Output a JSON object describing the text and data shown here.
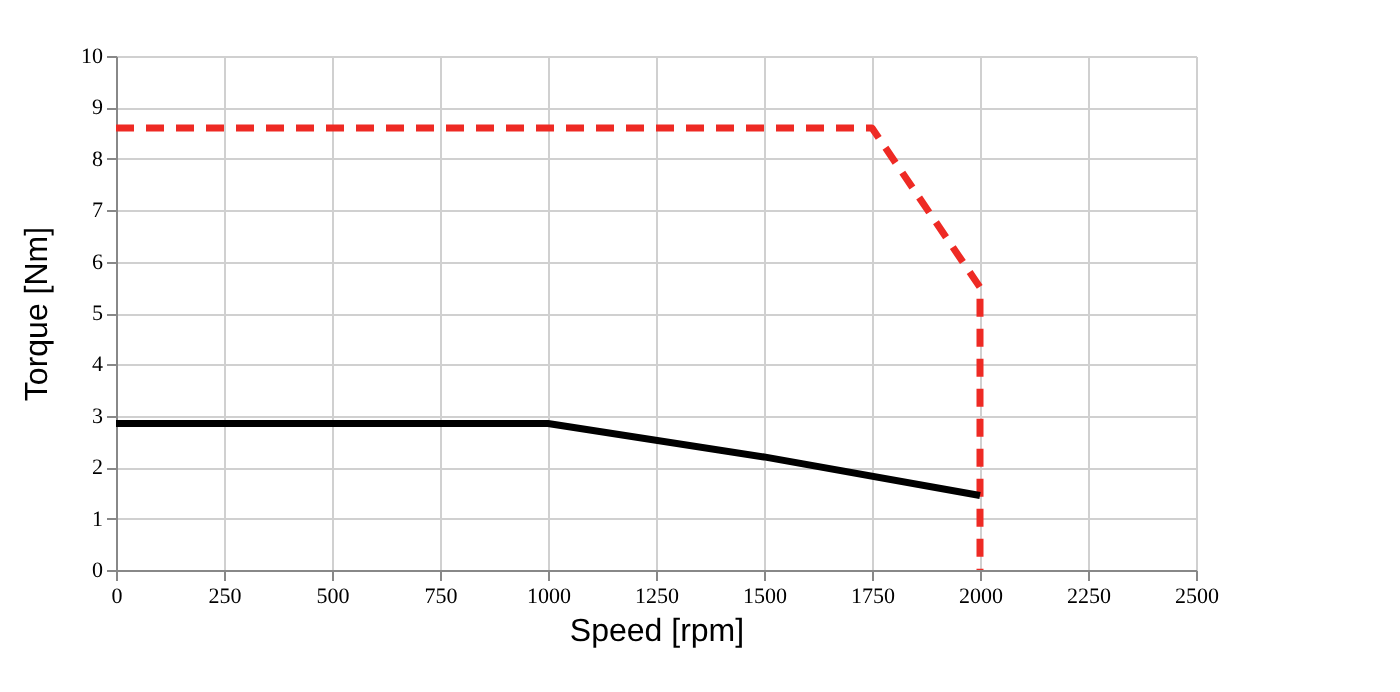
{
  "chart_data": {
    "type": "line",
    "xlabel": "Speed [rpm]",
    "ylabel": "Torque [Nm]",
    "xlim": [
      0,
      2500
    ],
    "xticks": [
      0,
      250,
      500,
      750,
      1000,
      1250,
      1500,
      1750,
      2000,
      2250,
      2500
    ],
    "ylim": [
      0,
      10
    ],
    "yticks": [
      0,
      1,
      2,
      3,
      4,
      5,
      6,
      7,
      8,
      9,
      10
    ],
    "grid": true,
    "marker": "none",
    "series": [
      {
        "color": "#ee2a24",
        "line_style": "dashed",
        "x": [
          0,
          1750,
          2000,
          2000
        ],
        "values": [
          8.6,
          8.6,
          5.5,
          0
        ]
      },
      {
        "color": "#000000",
        "line_style": "solid",
        "x": [
          0,
          1000,
          1500,
          2000
        ],
        "values": [
          2.85,
          2.85,
          2.2,
          1.45
        ]
      }
    ]
  }
}
